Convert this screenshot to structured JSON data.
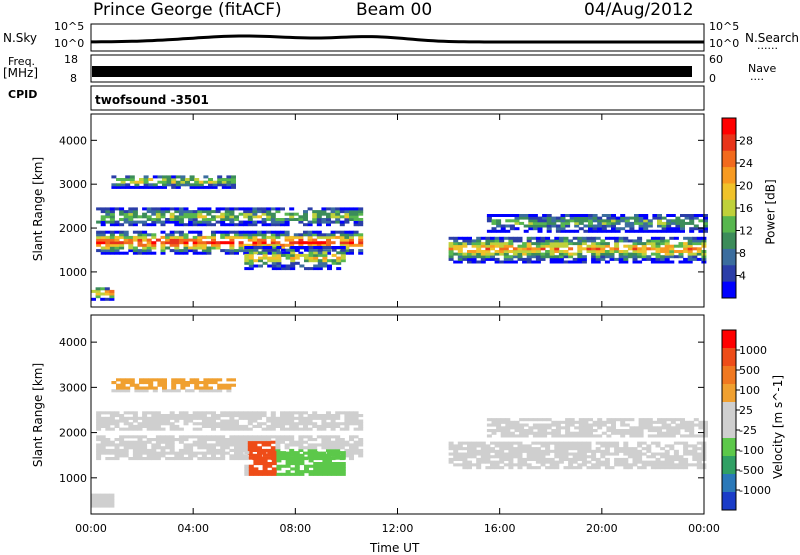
{
  "header": {
    "station": "Prince George (fitACF)",
    "beam": "Beam 00",
    "date": "04/Aug/2012"
  },
  "side_labels": {
    "nsky": "N.Sky",
    "freq": "Freq.",
    "freq_unit": "[MHz]",
    "cpid": "CPID",
    "nsearch": "N.Search",
    "nave": "Nave",
    "dots": "......",
    "dots2": "...."
  },
  "cpid_name": "twofsound -3501",
  "top_axes": {
    "noise_left_ticks": [
      "10^5",
      "10^0"
    ],
    "noise_right_ticks": [
      "10^5",
      "10^0"
    ],
    "freq_left_ticks": [
      "18",
      "8"
    ],
    "freq_right_ticks": [
      "60",
      "0"
    ]
  },
  "chart_data": [
    {
      "type": "heatmap",
      "name": "power",
      "ylabel": "Slant Range [km]",
      "yticks": [
        "4000",
        "3000",
        "2000",
        "1000"
      ],
      "yticks_values": [
        4000,
        3000,
        2000,
        1000
      ],
      "ylim": [
        200,
        4600
      ],
      "xlim": [
        0,
        24
      ],
      "colorbar_label": "Power [dB]",
      "colorbar_ticks": [
        "28",
        "24",
        "20",
        "16",
        "12",
        "8",
        "4"
      ],
      "colorbar_colors": [
        "#0000ff",
        "#2b3ea8",
        "#3b6d9e",
        "#3c8c5a",
        "#57b64e",
        "#bfd13a",
        "#f0c22a",
        "#f79a21",
        "#f26a1d",
        "#e8341a",
        "#ff0000"
      ]
    },
    {
      "type": "heatmap",
      "name": "velocity",
      "ylabel": "Slant Range [km]",
      "yticks": [
        "4000",
        "3000",
        "2000",
        "1000"
      ],
      "yticks_values": [
        4000,
        3000,
        2000,
        1000
      ],
      "ylim": [
        200,
        4600
      ],
      "xlim": [
        0,
        24
      ],
      "colorbar_label": "Velocity [m s^-1]",
      "colorbar_ticks": [
        "1000",
        "500",
        "100",
        "25",
        "-25",
        "-100",
        "-500",
        "-1000"
      ],
      "colorbar_colors": [
        "#1a3cc8",
        "#2a78b8",
        "#30a064",
        "#5cc84a",
        "#cfcfcf",
        "#cfcfcf",
        "#f0a030",
        "#f07820",
        "#ee4c18",
        "#ff0000"
      ]
    }
  ],
  "x_axis": {
    "ticks": [
      "00:00",
      "04:00",
      "08:00",
      "12:00",
      "16:00",
      "20:00",
      "00:00"
    ],
    "label": "Time UT"
  }
}
